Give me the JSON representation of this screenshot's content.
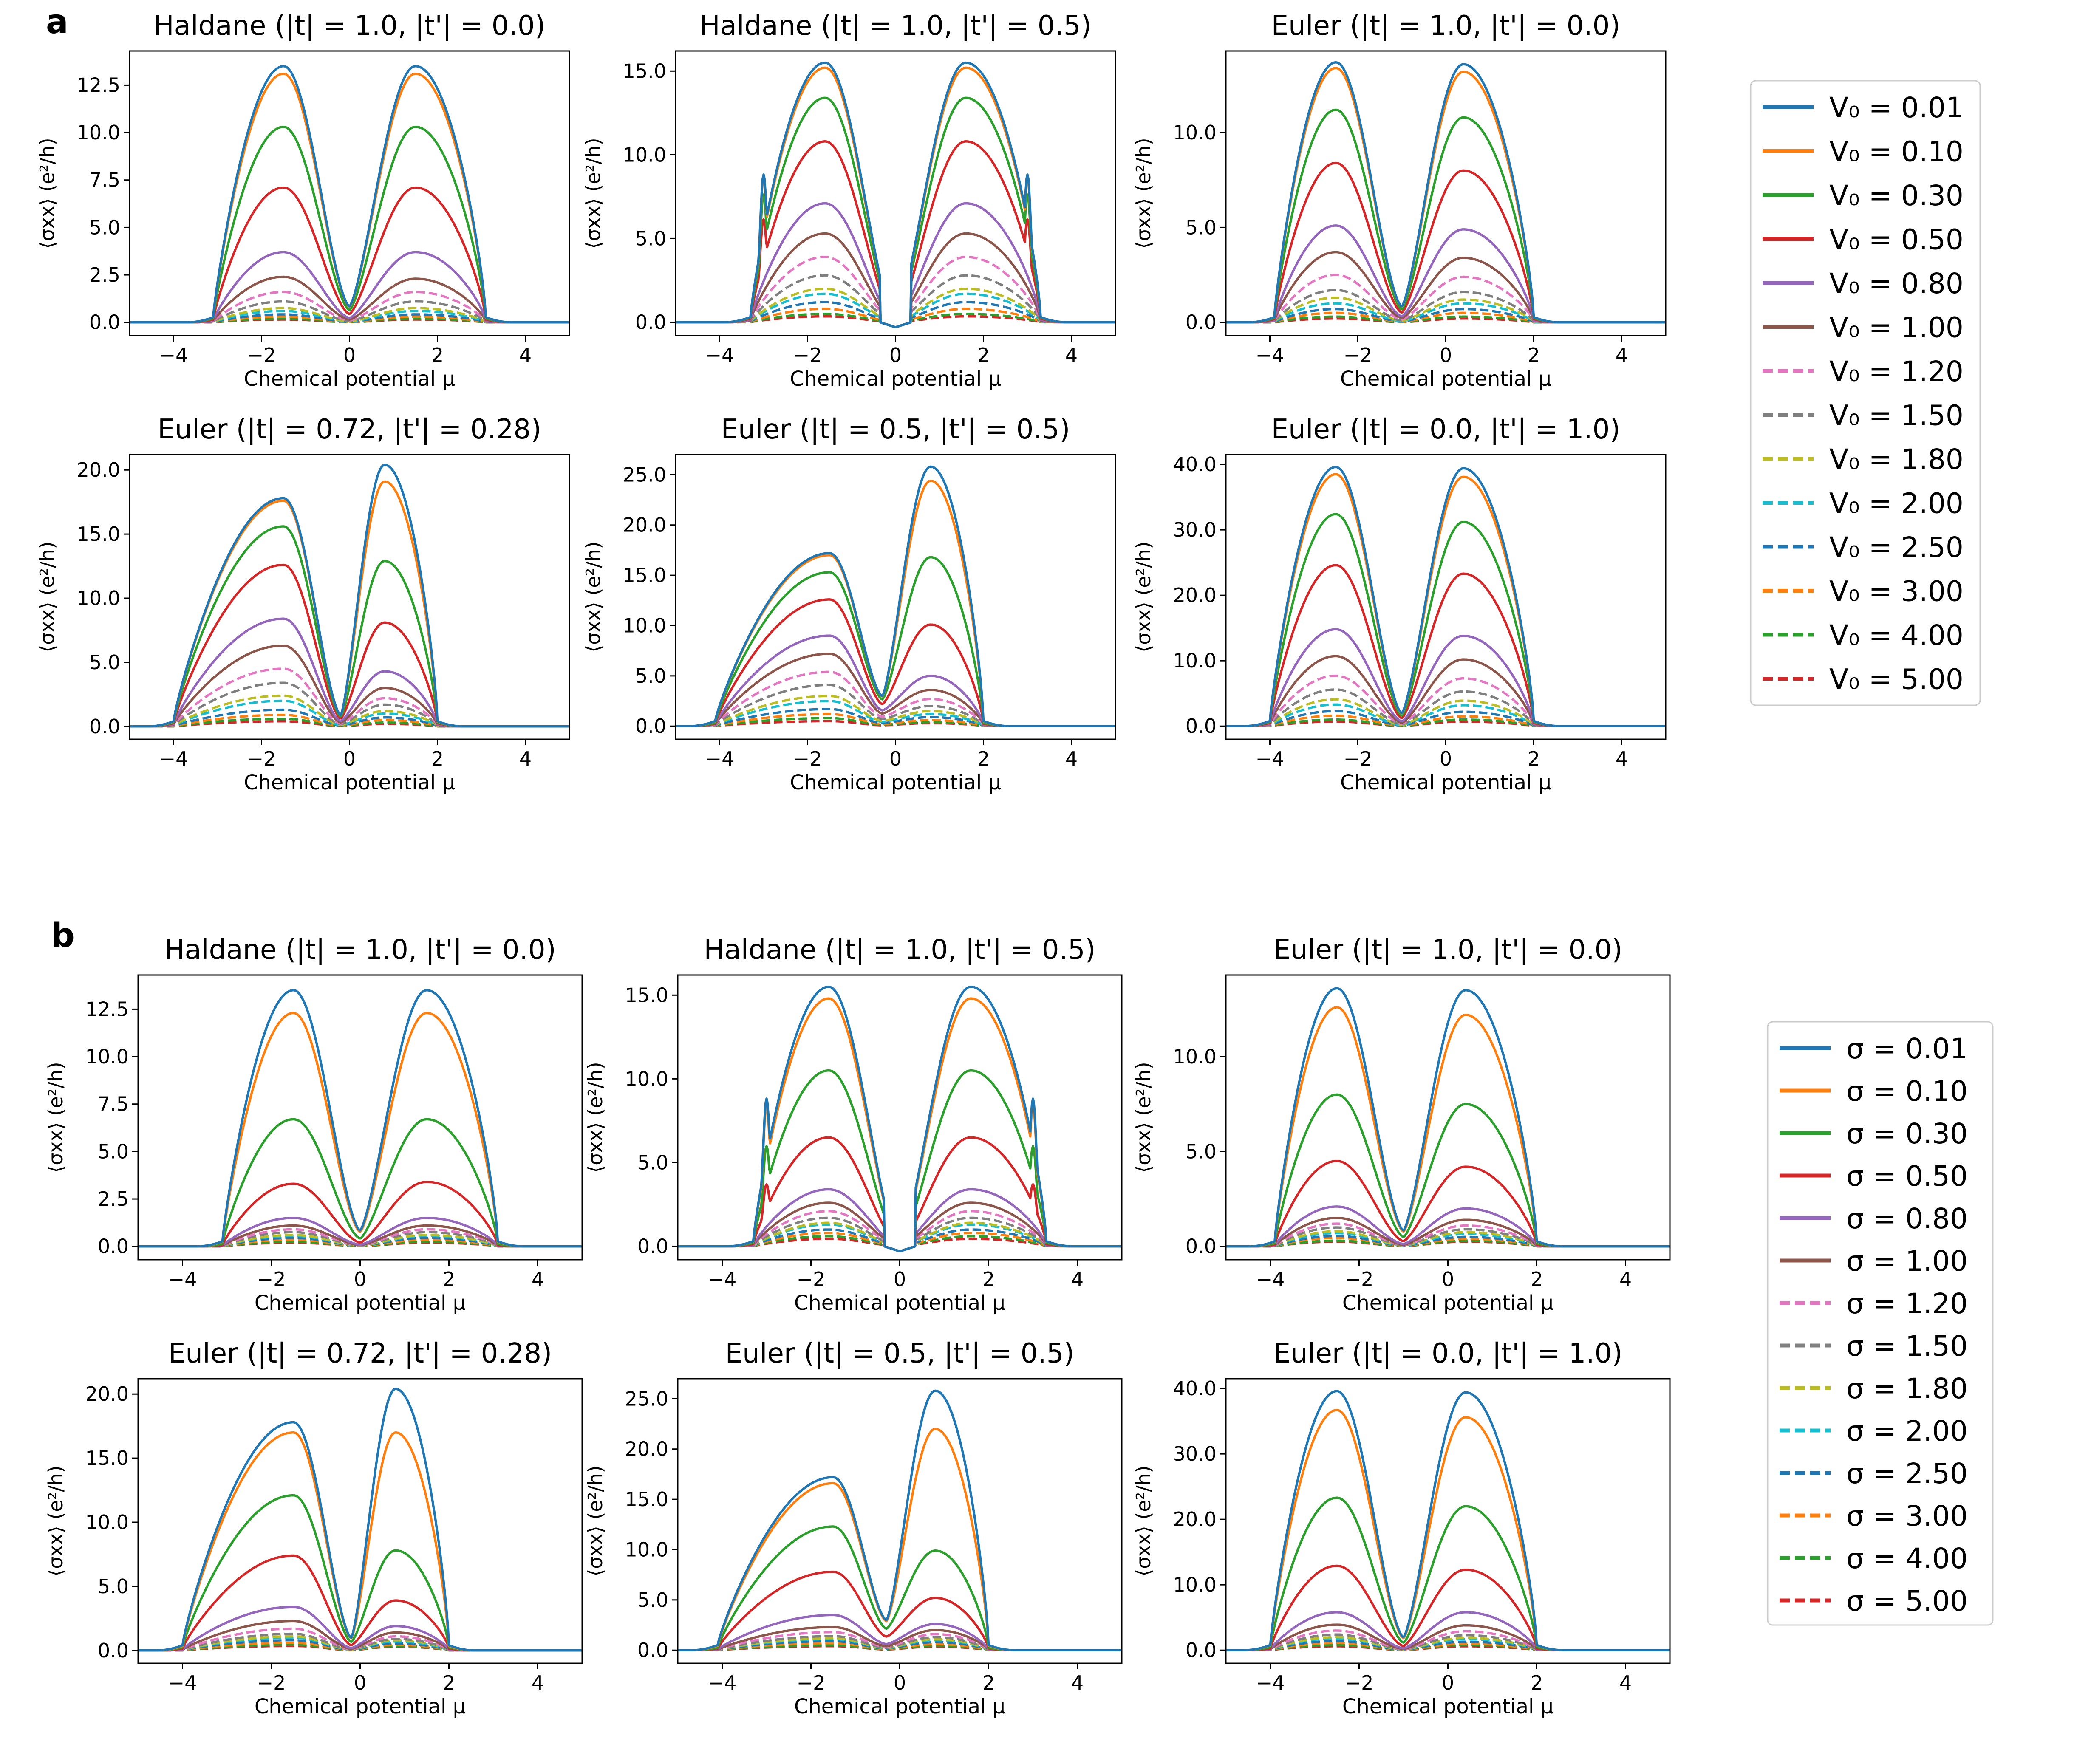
{
  "figure": {
    "panel_labels": [
      "a",
      "b"
    ]
  },
  "shared_axes": {
    "xlabel": "Chemical potential μ",
    "ylabel": "⟨σxx⟩ (e²/h)",
    "xlim": [
      -5,
      5
    ],
    "xticks": [
      -4,
      -2,
      0,
      2,
      4
    ]
  },
  "legend_a": {
    "param_symbol": "V₀",
    "entries": [
      "V₀ = 0.01",
      "V₀ = 0.10",
      "V₀ = 0.30",
      "V₀ = 0.50",
      "V₀ = 0.80",
      "V₀ = 1.00",
      "V₀ = 1.20",
      "V₀ = 1.50",
      "V₀ = 1.80",
      "V₀ = 2.00",
      "V₀ = 2.50",
      "V₀ = 3.00",
      "V₀ = 4.00",
      "V₀ = 5.00"
    ]
  },
  "legend_b": {
    "param_symbol": "σ",
    "entries": [
      "σ = 0.01",
      "σ = 0.10",
      "σ = 0.30",
      "σ = 0.50",
      "σ = 0.80",
      "σ = 1.00",
      "σ = 1.20",
      "σ = 1.50",
      "σ = 1.80",
      "σ = 2.00",
      "σ = 2.50",
      "σ = 3.00",
      "σ = 4.00",
      "σ = 5.00"
    ]
  },
  "series_style": {
    "colors": [
      "#1f77b4",
      "#ff7f0e",
      "#2ca02c",
      "#d62728",
      "#9467bd",
      "#8c564b",
      "#e377c2",
      "#7f7f7f",
      "#bcbd22",
      "#17becf",
      "#1f77b4",
      "#ff7f0e",
      "#2ca02c",
      "#d62728"
    ],
    "dashed": [
      false,
      false,
      false,
      false,
      false,
      false,
      true,
      true,
      true,
      true,
      true,
      true,
      true,
      true
    ]
  },
  "chart_data": [
    {
      "panel": "a",
      "type": "line",
      "title": "Haldane (|t| = 1.0, |t'| = 0.0)",
      "ylim": [
        -0.7,
        14.3
      ],
      "yticks": [
        0,
        2.5,
        5,
        7.5,
        10,
        12.5
      ],
      "ytick_labels": [
        "0.0",
        "2.5",
        "5.0",
        "7.5",
        "10.0",
        "12.5"
      ],
      "dip": 0,
      "left_edge": -3.1,
      "right_edge": 3.1,
      "left_peak_x": -1.5,
      "right_peak_x": 1.5,
      "dip_value": 0.85,
      "left_peaks": [
        13.5,
        13.1,
        10.3,
        7.1,
        3.7,
        2.4,
        1.6,
        1.1,
        0.75,
        0.6,
        0.42,
        0.3,
        0.2,
        0.15
      ],
      "right_peaks": [
        13.5,
        13.1,
        10.3,
        7.1,
        3.7,
        2.3,
        1.6,
        1.1,
        0.75,
        0.6,
        0.42,
        0.3,
        0.2,
        0.15
      ]
    },
    {
      "panel": "a",
      "type": "line",
      "title": "Haldane (|t| = 1.0, |t'| = 0.5)",
      "ylim": [
        -0.8,
        16.2
      ],
      "yticks": [
        0,
        5,
        10,
        15
      ],
      "ytick_labels": [
        "0.0",
        "5.0",
        "10.0",
        "15.0"
      ],
      "dip": 0,
      "left_edge": -3.3,
      "right_edge": 3.3,
      "left_peak_x": -1.6,
      "right_peak_x": 1.6,
      "dip_value": 0.0,
      "shoulder_x": 3.0,
      "shoulder_value": 9.0,
      "left_peaks": [
        15.5,
        15.2,
        13.4,
        10.8,
        7.1,
        5.3,
        3.9,
        2.8,
        2.0,
        1.7,
        1.2,
        0.8,
        0.5,
        0.35
      ],
      "right_peaks": [
        15.5,
        15.2,
        13.4,
        10.8,
        7.1,
        5.3,
        3.9,
        2.8,
        2.0,
        1.7,
        1.2,
        0.8,
        0.5,
        0.35
      ]
    },
    {
      "panel": "a",
      "type": "line",
      "title": "Euler (|t| = 1.0, |t'| = 0.0)",
      "ylim": [
        -0.7,
        14.3
      ],
      "yticks": [
        0,
        5,
        10
      ],
      "ytick_labels": [
        "0.0",
        "5.0",
        "10.0"
      ],
      "dip": -1,
      "left_edge": -3.9,
      "right_edge": 2.0,
      "left_peak_x": -2.5,
      "right_peak_x": 0.4,
      "dip_value": 0.85,
      "left_peaks": [
        13.7,
        13.4,
        11.2,
        8.4,
        5.1,
        3.7,
        2.5,
        1.7,
        1.3,
        1.0,
        0.7,
        0.5,
        0.3,
        0.2
      ],
      "right_peaks": [
        13.6,
        13.2,
        10.8,
        8.0,
        4.9,
        3.4,
        2.4,
        1.6,
        1.2,
        1.0,
        0.7,
        0.5,
        0.3,
        0.2
      ]
    },
    {
      "panel": "a",
      "type": "line",
      "title": "Euler (|t| = 0.72, |t'| = 0.28)",
      "ylim": [
        -1.0,
        21.2
      ],
      "yticks": [
        0,
        5,
        10,
        15,
        20
      ],
      "ytick_labels": [
        "0.0",
        "5.0",
        "10.0",
        "15.0",
        "20.0"
      ],
      "dip": -0.2,
      "left_edge": -4.0,
      "right_edge": 2.0,
      "left_peak_x": -1.5,
      "right_peak_x": 0.8,
      "dip_value": 0.9,
      "left_peaks": [
        17.8,
        17.6,
        15.6,
        12.6,
        8.4,
        6.3,
        4.5,
        3.4,
        2.4,
        2.0,
        1.3,
        0.9,
        0.6,
        0.4
      ],
      "right_peaks": [
        20.4,
        19.1,
        12.9,
        8.1,
        4.3,
        3.0,
        2.2,
        1.7,
        1.2,
        1.0,
        0.7,
        0.5,
        0.3,
        0.2
      ]
    },
    {
      "panel": "a",
      "type": "line",
      "title": "Euler (|t| = 0.5, |t'| = 0.5)",
      "ylim": [
        -1.3,
        27.0
      ],
      "yticks": [
        0,
        5,
        10,
        15,
        20,
        25
      ],
      "ytick_labels": [
        "0.0",
        "5.0",
        "10.0",
        "15.0",
        "20.0",
        "25.0"
      ],
      "dip": -0.3,
      "left_edge": -4.1,
      "right_edge": 2.0,
      "left_peak_x": -1.5,
      "right_peak_x": 0.8,
      "dip_value": 3.0,
      "left_peaks": [
        17.2,
        17.0,
        15.3,
        12.6,
        9.0,
        7.2,
        5.4,
        4.1,
        3.0,
        2.5,
        1.7,
        1.2,
        0.8,
        0.5
      ],
      "right_peaks": [
        25.8,
        24.4,
        16.8,
        10.1,
        5.0,
        3.6,
        2.7,
        2.0,
        1.5,
        1.2,
        0.9,
        0.6,
        0.4,
        0.3
      ]
    },
    {
      "panel": "a",
      "type": "line",
      "title": "Euler (|t| = 0.0, |t'| = 1.0)",
      "ylim": [
        -2.0,
        41.5
      ],
      "yticks": [
        0,
        10,
        20,
        30,
        40
      ],
      "ytick_labels": [
        "0.0",
        "10.0",
        "20.0",
        "30.0",
        "40.0"
      ],
      "dip": -1,
      "left_edge": -4.0,
      "right_edge": 2.0,
      "left_peak_x": -2.5,
      "right_peak_x": 0.4,
      "dip_value": 2.0,
      "left_peaks": [
        39.6,
        38.5,
        32.4,
        24.6,
        14.8,
        10.7,
        7.7,
        5.6,
        4.1,
        3.3,
        2.3,
        1.6,
        1.0,
        0.7
      ],
      "right_peaks": [
        39.4,
        38.1,
        31.2,
        23.3,
        13.8,
        10.2,
        7.3,
        5.3,
        3.9,
        3.2,
        2.2,
        1.5,
        1.0,
        0.7
      ]
    },
    {
      "panel": "b",
      "type": "line",
      "title": "Haldane (|t| = 1.0, |t'| = 0.0)",
      "ylim": [
        -0.7,
        14.3
      ],
      "yticks": [
        0,
        2.5,
        5,
        7.5,
        10,
        12.5
      ],
      "ytick_labels": [
        "0.0",
        "2.5",
        "5.0",
        "7.5",
        "10.0",
        "12.5"
      ],
      "dip": 0,
      "left_edge": -3.1,
      "right_edge": 3.1,
      "left_peak_x": -1.5,
      "right_peak_x": 1.5,
      "dip_value": 0.85,
      "left_peaks": [
        13.5,
        12.3,
        6.7,
        3.3,
        1.5,
        1.1,
        0.9,
        0.75,
        0.6,
        0.55,
        0.45,
        0.35,
        0.25,
        0.2
      ],
      "right_peaks": [
        13.5,
        12.3,
        6.7,
        3.4,
        1.5,
        1.1,
        0.9,
        0.75,
        0.6,
        0.55,
        0.45,
        0.35,
        0.25,
        0.2
      ]
    },
    {
      "panel": "b",
      "type": "line",
      "title": "Haldane (|t| = 1.0, |t'| = 0.5)",
      "ylim": [
        -0.8,
        16.2
      ],
      "yticks": [
        0,
        5,
        10,
        15
      ],
      "ytick_labels": [
        "0.0",
        "5.0",
        "10.0",
        "15.0"
      ],
      "dip": 0,
      "left_edge": -3.3,
      "right_edge": 3.3,
      "left_peak_x": -1.6,
      "right_peak_x": 1.6,
      "dip_value": 0.0,
      "shoulder_x": 3.0,
      "shoulder_value": 9.0,
      "left_peaks": [
        15.5,
        14.8,
        10.5,
        6.5,
        3.4,
        2.6,
        2.1,
        1.7,
        1.4,
        1.3,
        1.0,
        0.8,
        0.6,
        0.45
      ],
      "right_peaks": [
        15.5,
        14.8,
        10.5,
        6.5,
        3.4,
        2.6,
        2.1,
        1.7,
        1.4,
        1.3,
        1.0,
        0.8,
        0.6,
        0.45
      ]
    },
    {
      "panel": "b",
      "type": "line",
      "title": "Euler (|t| = 1.0, |t'| = 0.0)",
      "ylim": [
        -0.7,
        14.3
      ],
      "yticks": [
        0,
        5,
        10
      ],
      "ytick_labels": [
        "0.0",
        "5.0",
        "10.0"
      ],
      "dip": -1,
      "left_edge": -3.9,
      "right_edge": 2.0,
      "left_peak_x": -2.5,
      "right_peak_x": 0.4,
      "dip_value": 0.85,
      "left_peaks": [
        13.6,
        12.6,
        8.0,
        4.5,
        2.1,
        1.5,
        1.2,
        1.0,
        0.8,
        0.7,
        0.55,
        0.45,
        0.3,
        0.25
      ],
      "right_peaks": [
        13.5,
        12.2,
        7.5,
        4.2,
        2.0,
        1.4,
        1.1,
        0.9,
        0.75,
        0.65,
        0.5,
        0.4,
        0.3,
        0.25
      ]
    },
    {
      "panel": "b",
      "type": "line",
      "title": "Euler (|t| = 0.72, |t'| = 0.28)",
      "ylim": [
        -1.0,
        21.2
      ],
      "yticks": [
        0,
        5,
        10,
        15,
        20
      ],
      "ytick_labels": [
        "0.0",
        "5.0",
        "10.0",
        "15.0",
        "20.0"
      ],
      "dip": -0.2,
      "left_edge": -4.0,
      "right_edge": 2.0,
      "left_peak_x": -1.5,
      "right_peak_x": 0.8,
      "dip_value": 1.0,
      "left_peaks": [
        17.8,
        17.0,
        12.1,
        7.4,
        3.4,
        2.3,
        1.7,
        1.3,
        1.1,
        1.0,
        0.8,
        0.6,
        0.45,
        0.35
      ],
      "right_peaks": [
        20.4,
        17.0,
        7.8,
        3.9,
        1.9,
        1.4,
        1.1,
        0.9,
        0.8,
        0.7,
        0.55,
        0.45,
        0.35,
        0.3
      ]
    },
    {
      "panel": "b",
      "type": "line",
      "title": "Euler (|t| = 0.5, |t'| = 0.5)",
      "ylim": [
        -1.3,
        27.0
      ],
      "yticks": [
        0,
        5,
        10,
        15,
        20,
        25
      ],
      "ytick_labels": [
        "0.0",
        "5.0",
        "10.0",
        "15.0",
        "20.0",
        "25.0"
      ],
      "dip": -0.3,
      "left_edge": -4.1,
      "right_edge": 2.0,
      "left_peak_x": -1.5,
      "right_peak_x": 0.8,
      "dip_value": 3.0,
      "left_peaks": [
        17.2,
        16.6,
        12.3,
        7.8,
        3.5,
        2.3,
        1.8,
        1.4,
        1.2,
        1.1,
        0.9,
        0.7,
        0.5,
        0.4
      ],
      "right_peaks": [
        25.8,
        22.0,
        9.9,
        5.2,
        2.6,
        2.0,
        1.6,
        1.3,
        1.1,
        1.0,
        0.8,
        0.6,
        0.45,
        0.35
      ]
    },
    {
      "panel": "b",
      "type": "line",
      "title": "Euler (|t| = 0.0, |t'| = 1.0)",
      "ylim": [
        -2.0,
        41.5
      ],
      "yticks": [
        0,
        10,
        20,
        30,
        40
      ],
      "ytick_labels": [
        "0.0",
        "10.0",
        "20.0",
        "30.0",
        "40.0"
      ],
      "dip": -1,
      "left_edge": -4.0,
      "right_edge": 2.0,
      "left_peak_x": -2.5,
      "right_peak_x": 0.4,
      "dip_value": 2.0,
      "left_peaks": [
        39.6,
        36.7,
        23.3,
        12.9,
        5.8,
        3.9,
        3.0,
        2.4,
        2.0,
        1.8,
        1.4,
        1.1,
        0.8,
        0.6
      ],
      "right_peaks": [
        39.4,
        35.6,
        22.0,
        12.3,
        5.8,
        3.8,
        2.9,
        2.3,
        1.9,
        1.7,
        1.3,
        1.0,
        0.8,
        0.6
      ]
    }
  ]
}
